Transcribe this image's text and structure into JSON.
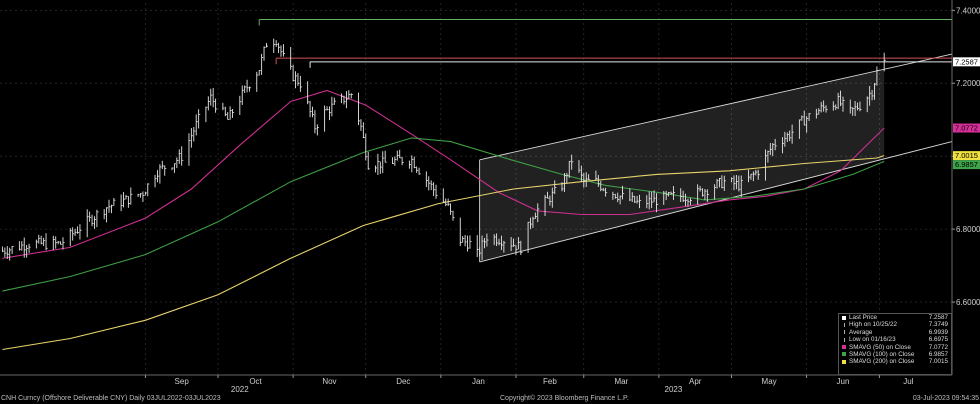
{
  "chart_data": {
    "type": "line",
    "title": "",
    "ylim": [
      6.4,
      7.42
    ],
    "x_range": [
      "2022-07-03",
      "2023-07-31"
    ],
    "y_ticks": [
      "6.6000",
      "6.8000",
      "7.0000",
      "7.2000",
      "7.4000"
    ],
    "month_ticks": [
      {
        "date": "2022-09-01",
        "label": "Sep"
      },
      {
        "date": "2022-10-01",
        "label": "Oct"
      },
      {
        "date": "2022-11-01",
        "label": "Nov"
      },
      {
        "date": "2022-12-01",
        "label": "Dec"
      },
      {
        "date": "2023-01-01",
        "label": "Jan"
      },
      {
        "date": "2023-02-01",
        "label": "Feb"
      },
      {
        "date": "2023-03-01",
        "label": "Mar"
      },
      {
        "date": "2023-04-01",
        "label": "Apr"
      },
      {
        "date": "2023-05-01",
        "label": "May"
      },
      {
        "date": "2023-06-01",
        "label": "Jun"
      },
      {
        "date": "2023-07-01",
        "label": "Jul"
      }
    ],
    "year_labels": [
      {
        "date": "2022-10-10",
        "label": "2022"
      },
      {
        "date": "2023-04-07",
        "label": "2023"
      }
    ],
    "series": [
      {
        "name": "Last Price",
        "color": "#ffffff",
        "x": [
          "2022-07-04",
          "2022-07-15",
          "2022-07-28",
          "2022-08-08",
          "2022-08-16",
          "2022-08-24",
          "2022-08-31",
          "2022-09-06",
          "2022-09-12",
          "2022-09-16",
          "2022-09-23",
          "2022-09-28",
          "2022-10-05",
          "2022-10-12",
          "2022-10-18",
          "2022-10-21",
          "2022-10-25",
          "2022-10-28",
          "2022-11-01",
          "2022-11-04",
          "2022-11-10",
          "2022-11-14",
          "2022-11-18",
          "2022-11-25",
          "2022-11-29",
          "2022-12-02",
          "2022-12-08",
          "2022-12-15",
          "2022-12-20",
          "2022-12-30",
          "2023-01-04",
          "2023-01-09",
          "2023-01-13",
          "2023-01-16",
          "2023-01-20",
          "2023-01-27",
          "2023-02-03",
          "2023-02-08",
          "2023-02-14",
          "2023-02-20",
          "2023-02-24",
          "2023-03-01",
          "2023-03-06",
          "2023-03-10",
          "2023-03-16",
          "2023-03-24",
          "2023-03-31",
          "2023-04-07",
          "2023-04-14",
          "2023-04-21",
          "2023-04-28",
          "2023-05-05",
          "2023-05-12",
          "2023-05-18",
          "2023-05-25",
          "2023-05-31",
          "2023-06-07",
          "2023-06-14",
          "2023-06-19",
          "2023-06-23",
          "2023-06-28",
          "2023-06-30",
          "2023-07-03"
        ],
        "y": [
          6.74,
          6.76,
          6.76,
          6.82,
          6.86,
          6.88,
          6.9,
          6.96,
          6.98,
          7.0,
          7.1,
          7.16,
          7.1,
          7.18,
          7.24,
          7.31,
          7.32,
          7.27,
          7.22,
          7.2,
          7.08,
          7.12,
          7.14,
          7.17,
          7.08,
          6.98,
          6.98,
          6.99,
          6.99,
          6.9,
          6.86,
          6.77,
          6.76,
          6.73,
          6.78,
          6.77,
          6.75,
          6.84,
          6.88,
          6.92,
          6.99,
          6.93,
          6.93,
          6.91,
          6.89,
          6.87,
          6.88,
          6.89,
          6.89,
          6.91,
          6.93,
          6.92,
          6.96,
          7.03,
          7.06,
          7.1,
          7.13,
          7.15,
          7.12,
          7.14,
          7.18,
          7.23,
          7.2587
        ]
      },
      {
        "name": "SMAVG (50) on Close",
        "color": "#cc2f8f",
        "x": [
          "2022-07-04",
          "2022-08-01",
          "2022-09-01",
          "2022-09-20",
          "2022-10-10",
          "2022-10-31",
          "2022-11-15",
          "2022-12-01",
          "2022-12-20",
          "2023-01-05",
          "2023-01-25",
          "2023-02-10",
          "2023-02-28",
          "2023-03-20",
          "2023-04-10",
          "2023-04-30",
          "2023-05-15",
          "2023-05-31",
          "2023-06-15",
          "2023-07-03"
        ],
        "y": [
          6.72,
          6.75,
          6.83,
          6.91,
          7.03,
          7.15,
          7.18,
          7.14,
          7.06,
          6.99,
          6.9,
          6.85,
          6.84,
          6.84,
          6.86,
          6.88,
          6.89,
          6.91,
          6.96,
          7.0772
        ]
      },
      {
        "name": "SMAVG (100) on Close",
        "color": "#3e9e45",
        "x": [
          "2022-07-04",
          "2022-08-01",
          "2022-09-01",
          "2022-10-01",
          "2022-10-31",
          "2022-11-30",
          "2022-12-20",
          "2023-01-05",
          "2023-01-30",
          "2023-02-20",
          "2023-03-10",
          "2023-04-01",
          "2023-04-20",
          "2023-05-10",
          "2023-05-31",
          "2023-06-20",
          "2023-07-03"
        ],
        "y": [
          6.63,
          6.67,
          6.73,
          6.82,
          6.93,
          7.01,
          7.05,
          7.04,
          6.99,
          6.95,
          6.92,
          6.9,
          6.88,
          6.89,
          6.91,
          6.95,
          6.9857
        ]
      },
      {
        "name": "SMAVG (200) on Close",
        "color": "#e8d36b",
        "x": [
          "2022-07-04",
          "2022-08-01",
          "2022-09-01",
          "2022-10-01",
          "2022-10-31",
          "2022-11-30",
          "2022-12-31",
          "2023-01-31",
          "2023-02-28",
          "2023-03-31",
          "2023-04-30",
          "2023-05-31",
          "2023-06-30",
          "2023-07-03"
        ],
        "y": [
          6.47,
          6.5,
          6.55,
          6.62,
          6.72,
          6.81,
          6.87,
          6.91,
          6.93,
          6.95,
          6.96,
          6.98,
          6.995,
          7.0015
        ]
      }
    ],
    "horizontal_lines": [
      {
        "name": "high-line",
        "color": "#63b363",
        "y": 7.3749,
        "x_start": "2022-10-18"
      },
      {
        "name": "resistance-line-red",
        "color": "#d45050",
        "y": 7.2687,
        "x_start": "2022-10-25"
      },
      {
        "name": "resistance-line-white",
        "color": "#e6e6e6",
        "y": 7.2587,
        "x_start": "2022-11-08"
      }
    ],
    "channel": {
      "color": "#d8d8d8",
      "upper": [
        [
          "2023-01-17",
          6.99
        ],
        [
          "2023-07-31",
          7.28
        ]
      ],
      "lower": [
        [
          "2023-01-17",
          6.71
        ],
        [
          "2023-07-31",
          7.04
        ]
      ],
      "shade_end": "2023-07-03"
    },
    "right_labels": [
      {
        "text": "7.2587",
        "y": 7.2587,
        "bg": "#ffffff",
        "fg": "#000000"
      },
      {
        "text": "7.0772",
        "y": 7.0772,
        "bg": "#d62f98",
        "fg": "#000000"
      },
      {
        "text": "7.0015",
        "y": 7.0015,
        "bg": "#f0e040",
        "fg": "#000000"
      },
      {
        "text": "6.9857",
        "y": 6.9857,
        "bg": "#3ea34a",
        "fg": "#000000"
      }
    ],
    "legend": [
      {
        "name": "Last Price",
        "value": "7.2587",
        "marker": "#ffffff"
      },
      {
        "name": "High on 10/25/22",
        "value": "7.3749",
        "marker": ""
      },
      {
        "name": "Average",
        "value": "6.9939",
        "marker": ""
      },
      {
        "name": "Low on 01/16/23",
        "value": "6.6975",
        "marker": ""
      },
      {
        "name": "SMAVG (50)  on Close",
        "value": "7.0772",
        "marker": "#d62f98"
      },
      {
        "name": "SMAVG (100)  on Close",
        "value": "6.9857",
        "marker": "#3ea34a"
      },
      {
        "name": "SMAVG (200)  on Close",
        "value": "7.0015",
        "marker": "#f0e040"
      }
    ]
  },
  "footer": {
    "left": "CNH Curncy (Offshore Deliverable CNY)  Daily 03JUL2022-03JUL2023",
    "center": "Copyright© 2023 Bloomberg Finance L.P.",
    "right": "03-Jul-2023 09:54:35"
  }
}
